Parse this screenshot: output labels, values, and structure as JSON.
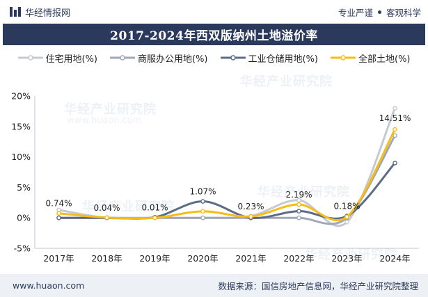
{
  "header": {
    "brand": "华经情报网",
    "tagline_left": "专业严谨",
    "tagline_right": "客观科学"
  },
  "watermark": {
    "text": "华经产业研究院",
    "url": "www.huaon.com"
  },
  "footer": {
    "url": "www.huaon.com",
    "source": "数据来源：国信房地产信息网，华经产业研究院整理"
  },
  "chart_data": {
    "type": "line",
    "title": "2017-2024年西双版纳州土地溢价率",
    "categories": [
      "2017年",
      "2018年",
      "2019年",
      "2020年",
      "2021年",
      "2022年",
      "2023年",
      "2024年"
    ],
    "ylim": [
      -5,
      20
    ],
    "yticks": [
      "-5%",
      "0%",
      "5%",
      "10%",
      "15%",
      "20%"
    ],
    "ytick_values": [
      -5,
      0,
      5,
      10,
      15,
      20
    ],
    "grid": false,
    "legend_position": "top",
    "series": [
      {
        "name": "住宅用地(%)",
        "color": "#c4c9d3",
        "values": [
          1.3,
          0.0,
          0.0,
          0.0,
          0.3,
          2.9,
          -0.7,
          18.0
        ]
      },
      {
        "name": "商服办公用地(%)",
        "color": "#9fa8b8",
        "values": [
          0.0,
          0.0,
          0.0,
          0.0,
          0.0,
          0.0,
          0.0,
          13.5
        ]
      },
      {
        "name": "工业仓储用地(%)",
        "color": "#5c6b88",
        "values": [
          0.0,
          0.0,
          0.1,
          2.7,
          0.0,
          1.1,
          0.3,
          9.0
        ]
      },
      {
        "name": "全部土地(%)",
        "color": "#f7bd16",
        "values": [
          0.74,
          0.04,
          0.01,
          1.07,
          0.23,
          2.19,
          0.18,
          14.51
        ]
      }
    ],
    "data_labels": [
      "0.74%",
      "0.04%",
      "0.01%",
      "1.07%",
      "0.23%",
      "2.19%",
      "0.18%",
      "14.51%"
    ]
  }
}
